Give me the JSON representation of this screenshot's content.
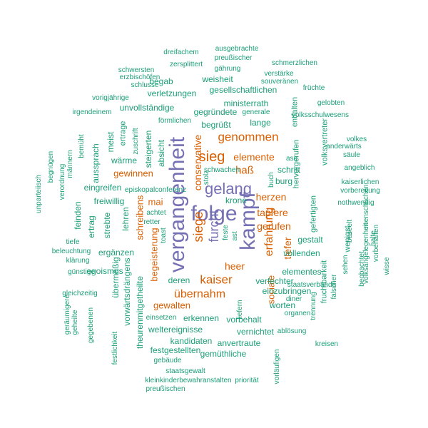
{
  "colors": {
    "teal": "#1b9e77",
    "orange": "#d95f02",
    "purple": "#7570b3"
  },
  "words": [
    {
      "text": "vergangenheit",
      "color": "purple"
    },
    {
      "text": "kampf",
      "color": "purple"
    },
    {
      "text": "folge",
      "color": "purple"
    },
    {
      "text": "gelang",
      "color": "purple"
    },
    {
      "text": "sieg",
      "color": "orange"
    },
    {
      "text": "furcht",
      "color": "purple"
    },
    {
      "text": "siege",
      "color": "orange"
    },
    {
      "text": "kaiser",
      "color": "orange"
    },
    {
      "text": "genommen",
      "color": "orange"
    },
    {
      "text": "erfahrung",
      "color": "orange"
    },
    {
      "text": "übernahm",
      "color": "orange"
    },
    {
      "text": "haß",
      "color": "orange"
    },
    {
      "text": "elemente",
      "color": "orange"
    },
    {
      "text": "conservative",
      "color": "orange"
    },
    {
      "text": "herzen",
      "color": "orange"
    },
    {
      "text": "tapfere",
      "color": "orange"
    },
    {
      "text": "gerufen",
      "color": "orange"
    },
    {
      "text": "tiefer",
      "color": "orange"
    },
    {
      "text": "heer",
      "color": "orange"
    },
    {
      "text": "sociale",
      "color": "orange"
    },
    {
      "text": "mai",
      "color": "orange"
    },
    {
      "text": "schreibens",
      "color": "orange"
    },
    {
      "text": "begeisterung",
      "color": "orange"
    },
    {
      "text": "gewinnen",
      "color": "orange"
    },
    {
      "text": "gewalten",
      "color": "orange"
    },
    {
      "text": "ministerrath",
      "color": "teal"
    },
    {
      "text": "weisheit",
      "color": "teal"
    },
    {
      "text": "gesellschaftlichen",
      "color": "teal"
    },
    {
      "text": "verletzungen",
      "color": "teal"
    },
    {
      "text": "begab",
      "color": "teal"
    },
    {
      "text": "unvollständige",
      "color": "teal"
    },
    {
      "text": "gegründete",
      "color": "teal"
    },
    {
      "text": "lange",
      "color": "teal"
    },
    {
      "text": "begrüßt",
      "color": "teal"
    },
    {
      "text": "wärme",
      "color": "teal"
    },
    {
      "text": "eingreifen",
      "color": "teal"
    },
    {
      "text": "freiwillig",
      "color": "teal"
    },
    {
      "text": "lehren",
      "color": "teal"
    },
    {
      "text": "ergänzen",
      "color": "teal"
    },
    {
      "text": "egoismus",
      "color": "teal"
    },
    {
      "text": "deren",
      "color": "teal"
    },
    {
      "text": "erkennen",
      "color": "teal"
    },
    {
      "text": "weltereignisse",
      "color": "teal"
    },
    {
      "text": "kandidaten",
      "color": "teal"
    },
    {
      "text": "festgestellten",
      "color": "teal"
    },
    {
      "text": "gemüthliche",
      "color": "teal"
    },
    {
      "text": "anvertraute",
      "color": "teal"
    },
    {
      "text": "vernichtet",
      "color": "teal"
    },
    {
      "text": "vorbehalt",
      "color": "teal"
    },
    {
      "text": "worten",
      "color": "teal"
    },
    {
      "text": "einzubringen",
      "color": "teal"
    },
    {
      "text": "verfechter",
      "color": "teal"
    },
    {
      "text": "elementes",
      "color": "teal"
    },
    {
      "text": "vollenden",
      "color": "teal"
    },
    {
      "text": "gestalt",
      "color": "teal"
    },
    {
      "text": "schritt",
      "color": "teal"
    },
    {
      "text": "burg",
      "color": "teal"
    },
    {
      "text": "krone",
      "color": "teal"
    },
    {
      "text": "meist",
      "color": "teal"
    },
    {
      "text": "aussprach",
      "color": "teal"
    },
    {
      "text": "ertrag",
      "color": "teal"
    },
    {
      "text": "feinden",
      "color": "teal"
    },
    {
      "text": "strebte",
      "color": "teal"
    },
    {
      "text": "übermäßig",
      "color": "teal"
    },
    {
      "text": "vorwärtsdrängens",
      "color": "teal"
    },
    {
      "text": "theurenmitgetheilte",
      "color": "teal"
    },
    {
      "text": "steigerten",
      "color": "teal"
    },
    {
      "text": "absicht",
      "color": "teal"
    },
    {
      "text": "ertrage",
      "color": "teal"
    },
    {
      "text": "zuschrift",
      "color": "teal"
    },
    {
      "text": "entfalten",
      "color": "teal"
    },
    {
      "text": "hervorgerufen",
      "color": "teal"
    },
    {
      "text": "volksvertreter",
      "color": "teal"
    },
    {
      "text": "gefertigten",
      "color": "teal"
    },
    {
      "text": "wenigst",
      "color": "teal"
    },
    {
      "text": "fruchtbarkeit",
      "color": "teal"
    },
    {
      "text": "dreifachem",
      "color": "teal"
    },
    {
      "text": "ausgebrachte",
      "color": "teal"
    },
    {
      "text": "preußischer",
      "color": "teal"
    },
    {
      "text": "zersplittert",
      "color": "teal"
    },
    {
      "text": "gährung",
      "color": "teal"
    },
    {
      "text": "schmerzlichen",
      "color": "teal"
    },
    {
      "text": "schwersten",
      "color": "teal"
    },
    {
      "text": "verstärke",
      "color": "teal"
    },
    {
      "text": "erzbischöfen",
      "color": "teal"
    },
    {
      "text": "souveränen",
      "color": "teal"
    },
    {
      "text": "schlusse",
      "color": "teal"
    },
    {
      "text": "früchte",
      "color": "teal"
    },
    {
      "text": "vorigjährige",
      "color": "teal"
    },
    {
      "text": "irgendeinem",
      "color": "teal"
    },
    {
      "text": "generale",
      "color": "teal"
    },
    {
      "text": "gelobten",
      "color": "teal"
    },
    {
      "text": "volksschulwesens",
      "color": "teal"
    },
    {
      "text": "förmlichen",
      "color": "teal"
    },
    {
      "text": "volkes",
      "color": "teal"
    },
    {
      "text": "anderwärts",
      "color": "teal"
    },
    {
      "text": "säule",
      "color": "teal"
    },
    {
      "text": "angeblich",
      "color": "teal"
    },
    {
      "text": "kaiserlichen",
      "color": "teal"
    },
    {
      "text": "vorbereitung",
      "color": "teal"
    },
    {
      "text": "nothwendig",
      "color": "teal"
    },
    {
      "text": "bemüht",
      "color": "teal"
    },
    {
      "text": "männern",
      "color": "teal"
    },
    {
      "text": "begnügen",
      "color": "teal"
    },
    {
      "text": "verordnung",
      "color": "teal"
    },
    {
      "text": "unparteiisch",
      "color": "teal"
    },
    {
      "text": "episkopalconferenz",
      "color": "teal"
    },
    {
      "text": "achtet",
      "color": "teal"
    },
    {
      "text": "retter",
      "color": "teal"
    },
    {
      "text": "toast",
      "color": "teal"
    },
    {
      "text": "schwachen",
      "color": "teal"
    },
    {
      "text": "stolz",
      "color": "teal"
    },
    {
      "text": "feste",
      "color": "teal"
    },
    {
      "text": "ast",
      "color": "teal"
    },
    {
      "text": "buch",
      "color": "teal"
    },
    {
      "text": "ase",
      "color": "teal"
    },
    {
      "text": "tiefe",
      "color": "teal"
    },
    {
      "text": "beleuchtung",
      "color": "teal"
    },
    {
      "text": "klärung",
      "color": "teal"
    },
    {
      "text": "günstige",
      "color": "teal"
    },
    {
      "text": "gleichzeitig",
      "color": "teal"
    },
    {
      "text": "geräumigere",
      "color": "teal"
    },
    {
      "text": "geheilte",
      "color": "teal"
    },
    {
      "text": "gegebenen",
      "color": "teal"
    },
    {
      "text": "festlichkeit",
      "color": "teal"
    },
    {
      "text": "einsetzen",
      "color": "teal"
    },
    {
      "text": "liefern",
      "color": "teal"
    },
    {
      "text": "diner",
      "color": "teal"
    },
    {
      "text": "organen",
      "color": "teal"
    },
    {
      "text": "ablösung",
      "color": "teal"
    },
    {
      "text": "kreisen",
      "color": "teal"
    },
    {
      "text": "gebäude",
      "color": "teal"
    },
    {
      "text": "staatsgewalt",
      "color": "teal"
    },
    {
      "text": "kleinkinderbewahranstalten",
      "color": "teal"
    },
    {
      "text": "priorität",
      "color": "teal"
    },
    {
      "text": "preußischen",
      "color": "teal"
    },
    {
      "text": "vorläufigen",
      "color": "teal"
    },
    {
      "text": "staatsverbande",
      "color": "teal"
    },
    {
      "text": "trennung",
      "color": "teal"
    },
    {
      "text": "falscher",
      "color": "teal"
    },
    {
      "text": "sehen",
      "color": "teal"
    },
    {
      "text": "beobachtet",
      "color": "teal"
    },
    {
      "text": "beseelt",
      "color": "teal"
    },
    {
      "text": "menschlichen",
      "color": "teal"
    },
    {
      "text": "halte",
      "color": "teal"
    },
    {
      "text": "volksangelegenheit",
      "color": "teal"
    },
    {
      "text": "vorbehalten",
      "color": "teal"
    },
    {
      "text": "wisse",
      "color": "teal"
    },
    {
      "text": "übersteigen",
      "color": "teal"
    }
  ]
}
